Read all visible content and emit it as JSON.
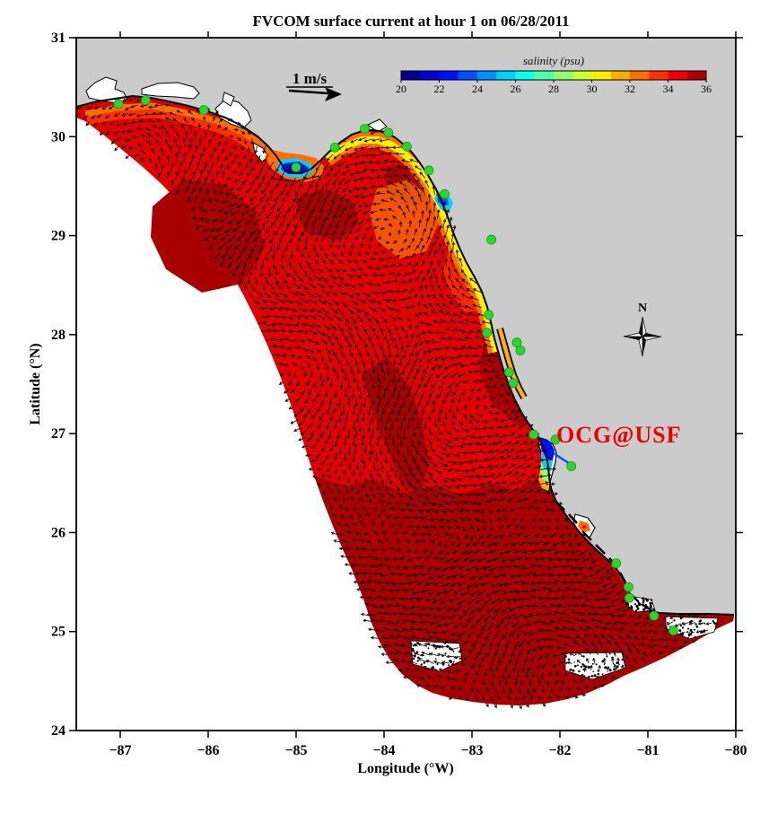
{
  "figure": {
    "title": "FVCOM surface current at hour 1 on 06/28/2011",
    "xlabel": "Longitude (°W)",
    "ylabel": "Latitude (°N)",
    "xtick_labels": [
      "−87",
      "−86",
      "−85",
      "−84",
      "−83",
      "−82",
      "−81",
      "−80"
    ],
    "ytick_labels": [
      "24",
      "25",
      "26",
      "27",
      "28",
      "29",
      "30",
      "31"
    ]
  },
  "colorbar": {
    "label": "salinity (psu)",
    "tick_labels": [
      "20",
      "22",
      "24",
      "26",
      "28",
      "30",
      "32",
      "34",
      "36"
    ],
    "colors": [
      "#00008F",
      "#0000CF",
      "#0010FF",
      "#0050FF",
      "#0090FF",
      "#00CFFF",
      "#10FFEF",
      "#50FFAF",
      "#90FF6F",
      "#CFFF2F",
      "#FFEF00",
      "#FFAF00",
      "#FF6F00",
      "#FF2F00",
      "#EF0000",
      "#AF0000"
    ]
  },
  "scale": {
    "label": "1 m/s"
  },
  "compass": {
    "label": "N"
  },
  "credit": {
    "text": "OCG@USF",
    "color": "#EE0000"
  },
  "colors": {
    "land": "#CBCBCB",
    "ocean_background": "#FFFFFF",
    "shelf_red": "#E00000",
    "shelf_dark_red": "#A80000",
    "station_green": "#2FD32F",
    "vectors": "#000000"
  },
  "chart_data": {
    "type": "heatmap",
    "title": "FVCOM surface current at hour 1 on 06/28/2011",
    "xlabel": "Longitude (°W)",
    "ylabel": "Latitude (°N)",
    "xlim": [
      -87.5,
      -80
    ],
    "ylim": [
      24,
      31
    ],
    "xticks": [
      -87,
      -86,
      -85,
      -84,
      -83,
      -82,
      -81,
      -80
    ],
    "yticks": [
      24,
      25,
      26,
      27,
      28,
      29,
      30,
      31
    ],
    "grid": false,
    "colorbar_label": "salinity (psu)",
    "colorbar_range": [
      20,
      36
    ],
    "colorbar_ticks": [
      20,
      22,
      24,
      26,
      28,
      30,
      32,
      34,
      36
    ],
    "vector_key": {
      "label": "1 m/s",
      "value": 1,
      "units": "m/s"
    },
    "stations_lonlat": [
      [
        -87.02,
        30.33
      ],
      [
        -86.71,
        30.37
      ],
      [
        -86.05,
        30.27
      ],
      [
        -85.0,
        29.69
      ],
      [
        -84.56,
        29.89
      ],
      [
        -84.22,
        30.08
      ],
      [
        -83.95,
        30.04
      ],
      [
        -83.74,
        29.9
      ],
      [
        -83.49,
        29.66
      ],
      [
        -83.31,
        29.42
      ],
      [
        -82.78,
        28.96
      ],
      [
        -82.81,
        28.2
      ],
      [
        -82.83,
        28.02
      ],
      [
        -82.49,
        27.92
      ],
      [
        -82.45,
        27.84
      ],
      [
        -82.58,
        27.62
      ],
      [
        -82.53,
        27.51
      ],
      [
        -82.3,
        26.99
      ],
      [
        -82.05,
        26.94
      ],
      [
        -81.87,
        26.67
      ],
      [
        -81.36,
        25.69
      ],
      [
        -81.22,
        25.45
      ],
      [
        -81.21,
        25.34
      ],
      [
        -80.93,
        25.16
      ],
      [
        -80.71,
        25.01
      ]
    ],
    "annotations": [
      {
        "text": "OCG@USF",
        "lon": -81.52,
        "lat": 26.99,
        "color": "#EE0000"
      },
      {
        "text": "N",
        "kind": "compass-rose",
        "lon": -81.06,
        "lat": 27.98
      }
    ]
  }
}
